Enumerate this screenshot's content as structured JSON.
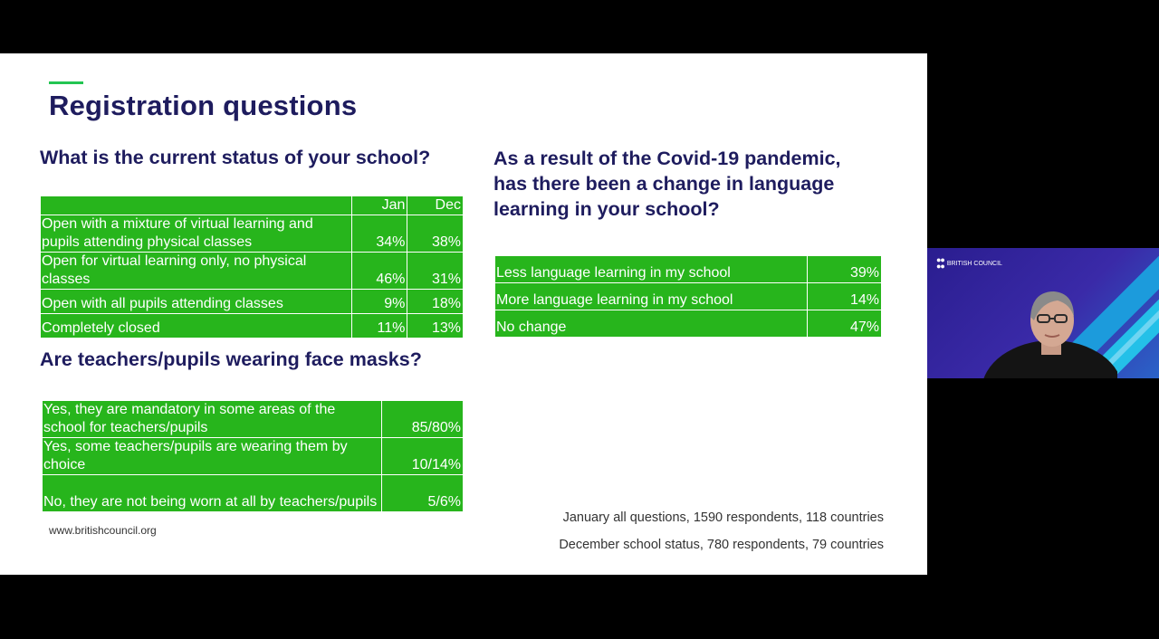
{
  "slide": {
    "title": "Registration questions",
    "url": "www.britishcouncil.org",
    "notes": [
      "January all questions, 1590 respondents,  118 countries",
      "December school status, 780 respondents, 79 countries"
    ]
  },
  "school_status": {
    "question": "What is the current status of your school?",
    "headers": [
      "",
      "Jan",
      "Dec"
    ],
    "rows": [
      {
        "label": "Open with a mixture of virtual learning and pupils attending physical classes",
        "jan": "34%",
        "dec": "38%"
      },
      {
        "label": "Open for virtual learning only, no physical classes",
        "jan": "46%",
        "dec": "31%"
      },
      {
        "label": "Open with all pupils attending classes",
        "jan": "9%",
        "dec": "18%"
      },
      {
        "label": "Completely closed",
        "jan": "11%",
        "dec": "13%"
      }
    ]
  },
  "face_masks": {
    "question": "Are teachers/pupils wearing face masks?",
    "rows": [
      {
        "label": "Yes, they are mandatory in some areas of the school for teachers/pupils",
        "value": "85/80%"
      },
      {
        "label": "Yes, some teachers/pupils are wearing them by choice",
        "value": "10/14%"
      },
      {
        "label": "No, they are not being worn at all by teachers/pupils",
        "value": "5/6%"
      }
    ]
  },
  "language_learning": {
    "question": "As a result of the Covid-19 pandemic, has there been a change in language learning in your school?",
    "rows": [
      {
        "label": "Less language learning in my school",
        "value": "39%"
      },
      {
        "label": "More language learning in my school",
        "value": "14%"
      },
      {
        "label": "No change",
        "value": "47%"
      }
    ]
  },
  "camera": {
    "logo_text": "BRITISH COUNCIL"
  },
  "colors": {
    "table_green": "#27b51c",
    "title_navy": "#1e1c5e",
    "accent_green": "#23c552"
  }
}
